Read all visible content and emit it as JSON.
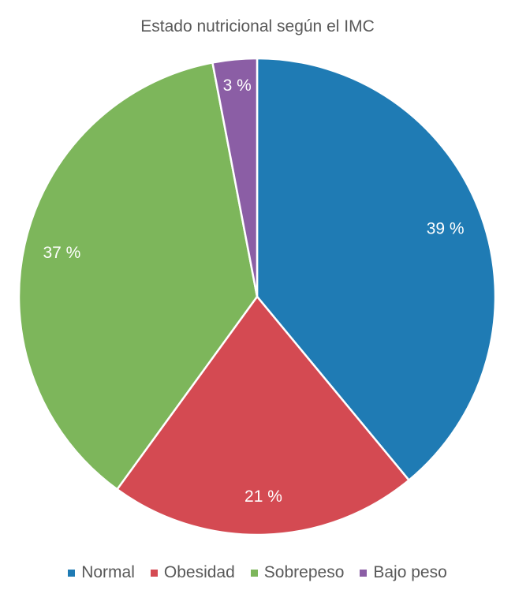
{
  "chart_data": {
    "type": "pie",
    "title": "Estado nutricional según el IMC",
    "slices": [
      {
        "label": "Normal",
        "value": 39,
        "display": "39 %",
        "color": "#1f7bb4"
      },
      {
        "label": "Obesidad",
        "value": 21,
        "display": "21 %",
        "color": "#d44a52"
      },
      {
        "label": "Sobrepeso",
        "value": 37,
        "display": "37 %",
        "color": "#7db65b"
      },
      {
        "label": "Bajo peso",
        "value": 3,
        "display": "3 %",
        "color": "#8b5ea5"
      }
    ],
    "legend_position": "bottom",
    "start": "top, clockwise"
  }
}
